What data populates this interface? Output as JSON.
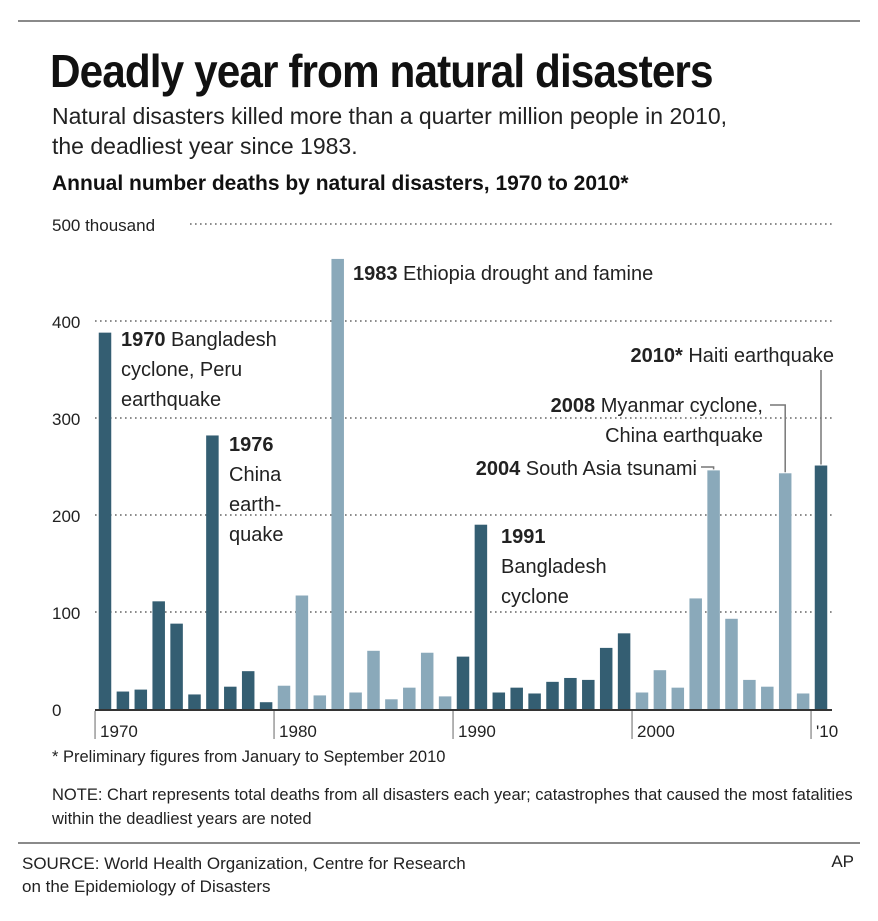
{
  "header": {
    "title": "Deadly year from natural disasters",
    "subtitle_lines": [
      "Natural disasters killed more than a quarter million people in 2010,",
      "the deadliest year since 1983."
    ]
  },
  "colors": {
    "dark_bar": "#345e72",
    "light_bar": "#8aa9ba",
    "rule": "#8a8a8a"
  },
  "chart_data": {
    "type": "bar",
    "title": "Annual number deaths by natural disasters, 1970 to 2010*",
    "ylabel": "",
    "xlabel": "",
    "ylim": [
      0,
      500
    ],
    "yticks": [
      0,
      100,
      200,
      300,
      400,
      500
    ],
    "ytick_labels": [
      "0",
      "100",
      "200",
      "300",
      "400",
      "500 thousand"
    ],
    "xtick_labels": [
      {
        "year": 1970,
        "label": "1970"
      },
      {
        "year": 1980,
        "label": "1980"
      },
      {
        "year": 1990,
        "label": "1990"
      },
      {
        "year": 2000,
        "label": "2000"
      },
      {
        "year": 2010,
        "label": "'10"
      }
    ],
    "grid": "dotted horizontal",
    "unit": "thousand deaths",
    "bars": [
      {
        "year": 1970,
        "value": 388,
        "shade": "dark"
      },
      {
        "year": 1971,
        "value": 18,
        "shade": "dark"
      },
      {
        "year": 1972,
        "value": 20,
        "shade": "dark"
      },
      {
        "year": 1973,
        "value": 111,
        "shade": "dark"
      },
      {
        "year": 1974,
        "value": 88,
        "shade": "dark"
      },
      {
        "year": 1975,
        "value": 15,
        "shade": "dark"
      },
      {
        "year": 1976,
        "value": 282,
        "shade": "dark"
      },
      {
        "year": 1977,
        "value": 23,
        "shade": "dark"
      },
      {
        "year": 1978,
        "value": 39,
        "shade": "dark"
      },
      {
        "year": 1979,
        "value": 7,
        "shade": "dark"
      },
      {
        "year": 1980,
        "value": 24,
        "shade": "light"
      },
      {
        "year": 1981,
        "value": 117,
        "shade": "light"
      },
      {
        "year": 1982,
        "value": 14,
        "shade": "light"
      },
      {
        "year": 1983,
        "value": 464,
        "shade": "light"
      },
      {
        "year": 1984,
        "value": 17,
        "shade": "light"
      },
      {
        "year": 1985,
        "value": 60,
        "shade": "light"
      },
      {
        "year": 1986,
        "value": 10,
        "shade": "light"
      },
      {
        "year": 1987,
        "value": 22,
        "shade": "light"
      },
      {
        "year": 1988,
        "value": 58,
        "shade": "light"
      },
      {
        "year": 1989,
        "value": 13,
        "shade": "light"
      },
      {
        "year": 1990,
        "value": 54,
        "shade": "dark"
      },
      {
        "year": 1991,
        "value": 190,
        "shade": "dark"
      },
      {
        "year": 1992,
        "value": 17,
        "shade": "dark"
      },
      {
        "year": 1993,
        "value": 22,
        "shade": "dark"
      },
      {
        "year": 1994,
        "value": 16,
        "shade": "dark"
      },
      {
        "year": 1995,
        "value": 28,
        "shade": "dark"
      },
      {
        "year": 1996,
        "value": 32,
        "shade": "dark"
      },
      {
        "year": 1997,
        "value": 30,
        "shade": "dark"
      },
      {
        "year": 1998,
        "value": 63,
        "shade": "dark"
      },
      {
        "year": 1999,
        "value": 78,
        "shade": "dark"
      },
      {
        "year": 2000,
        "value": 17,
        "shade": "light"
      },
      {
        "year": 2001,
        "value": 40,
        "shade": "light"
      },
      {
        "year": 2002,
        "value": 22,
        "shade": "light"
      },
      {
        "year": 2003,
        "value": 114,
        "shade": "light"
      },
      {
        "year": 2004,
        "value": 246,
        "shade": "light"
      },
      {
        "year": 2005,
        "value": 93,
        "shade": "light"
      },
      {
        "year": 2006,
        "value": 30,
        "shade": "light"
      },
      {
        "year": 2007,
        "value": 23,
        "shade": "light"
      },
      {
        "year": 2008,
        "value": 243,
        "shade": "light"
      },
      {
        "year": 2009,
        "value": 16,
        "shade": "light"
      },
      {
        "year": 2010,
        "value": 251,
        "shade": "dark"
      }
    ],
    "annotations": [
      {
        "year": 1970,
        "bold": "1970",
        "lines": [
          " Bangladesh",
          "cyclone, Peru",
          "earthquake"
        ]
      },
      {
        "year": 1976,
        "bold": "1976",
        "lines": [
          "",
          "China",
          "earth-",
          "quake"
        ]
      },
      {
        "year": 1983,
        "bold": "1983",
        "lines": [
          " Ethiopia drought and famine"
        ]
      },
      {
        "year": 1991,
        "bold": "1991",
        "lines": [
          "",
          "Bangladesh",
          "cyclone"
        ]
      },
      {
        "year": 2004,
        "bold": "2004",
        "lines": [
          " South Asia tsunami"
        ]
      },
      {
        "year": 2008,
        "bold": "2008",
        "lines": [
          " Myanmar cyclone,",
          "China earthquake"
        ]
      },
      {
        "year": 2010,
        "bold": "2010*",
        "lines": [
          " Haiti earthquake"
        ]
      }
    ]
  },
  "footer": {
    "footnote": "* Preliminary figures from January to September 2010",
    "note": "NOTE: Chart represents total deaths from all disasters each year; catastrophes that caused the most fatalities within the deadliest years are noted",
    "source_lines": [
      "SOURCE: World Health Organization, Centre for Research",
      "on the Epidemiology of Disasters"
    ],
    "credit": "AP"
  }
}
